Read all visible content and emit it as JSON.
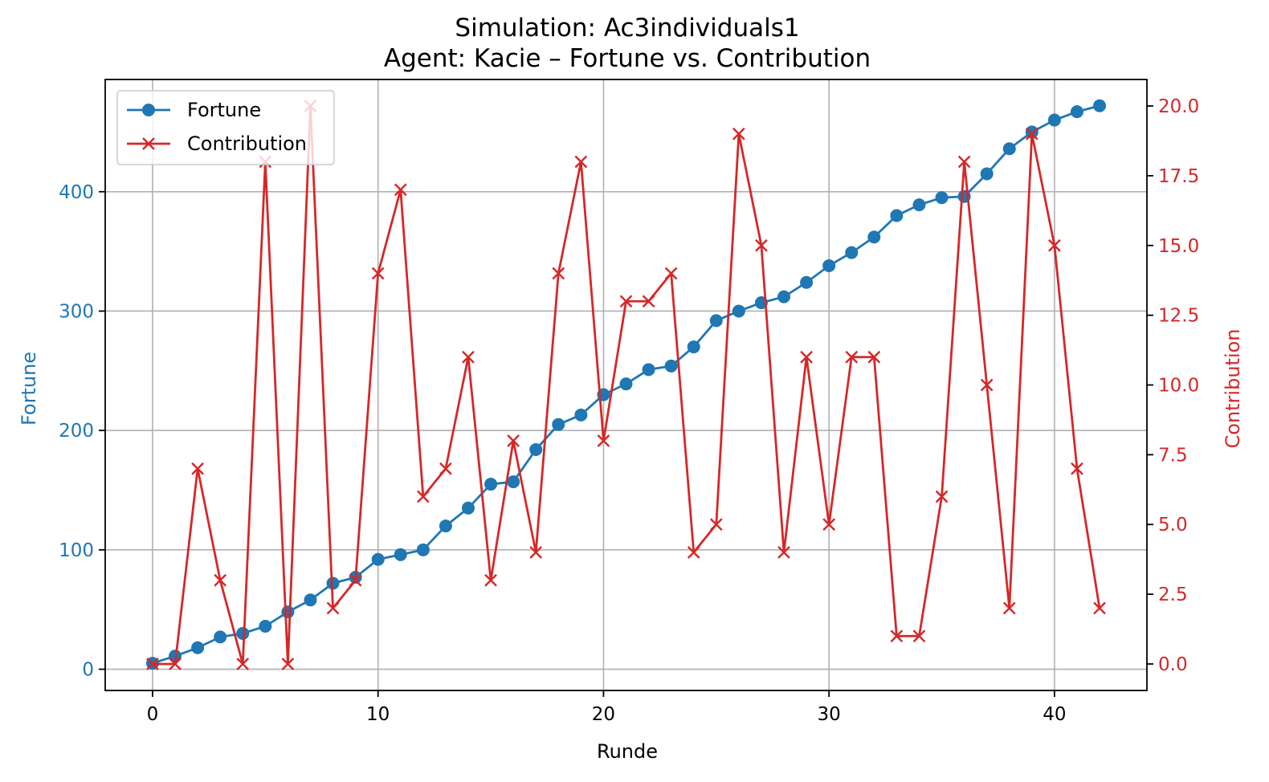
{
  "chart_data": {
    "type": "line",
    "title": "Simulation: Ac3individuals1",
    "subtitle": "Agent: Kacie – Fortune vs. Contribution",
    "xlabel": "Runde",
    "ylabel_left": "Fortune",
    "ylabel_right": "Contribution",
    "xlim": [
      -2.1,
      44.1
    ],
    "ylim_left": [
      -17.8,
      494
    ],
    "ylim_right": [
      -0.95,
      20.95
    ],
    "x_ticks": [
      0,
      10,
      20,
      30,
      40
    ],
    "y_ticks_left": [
      0,
      100,
      200,
      300,
      400
    ],
    "y_ticks_right": [
      0.0,
      2.5,
      5.0,
      7.5,
      10.0,
      12.5,
      15.0,
      17.5,
      20.0
    ],
    "grid": true,
    "legend": "upper-left",
    "x": [
      0,
      1,
      2,
      3,
      4,
      5,
      6,
      7,
      8,
      9,
      10,
      11,
      12,
      13,
      14,
      15,
      16,
      17,
      18,
      19,
      20,
      21,
      22,
      23,
      24,
      25,
      26,
      27,
      28,
      29,
      30,
      31,
      32,
      33,
      34,
      35,
      36,
      37,
      38,
      39,
      40,
      41,
      42
    ],
    "series": [
      {
        "name": "Fortune",
        "axis": "left",
        "color": "#1f77b4",
        "marker": "circle",
        "values": [
          5,
          11,
          18,
          27,
          30,
          36,
          48,
          58,
          72,
          77,
          92,
          96,
          100,
          120,
          135,
          155,
          157,
          184,
          205,
          213,
          230,
          239,
          251,
          254,
          270,
          292,
          300,
          307,
          312,
          324,
          338,
          349,
          362,
          380,
          389,
          395,
          396,
          415,
          436,
          450,
          460,
          467,
          472
        ]
      },
      {
        "name": "Contribution",
        "axis": "right",
        "color": "#d62728",
        "marker": "x",
        "values": [
          0,
          0,
          7,
          3,
          0,
          18,
          0,
          20,
          2,
          3,
          14,
          17,
          6,
          7,
          11,
          3,
          8,
          4,
          14,
          18,
          8,
          13,
          13,
          14,
          4,
          5,
          19,
          15,
          4,
          11,
          5,
          11,
          11,
          1,
          1,
          6,
          18,
          10,
          2,
          19,
          15,
          7,
          2
        ]
      }
    ]
  }
}
